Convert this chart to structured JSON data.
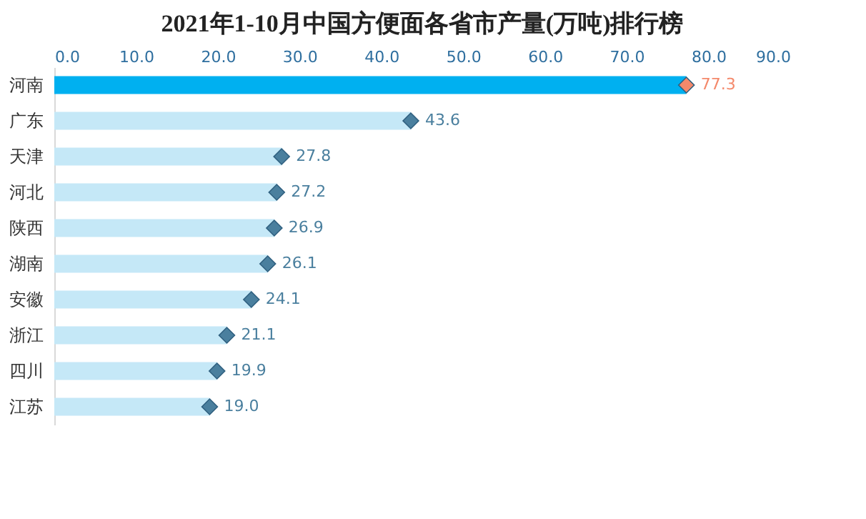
{
  "chart_data": {
    "type": "bar",
    "orientation": "horizontal",
    "title": "2021年1-10月中国方便面各省市产量(万吨)排行榜",
    "categories": [
      "河南",
      "广东",
      "天津",
      "河北",
      "陕西",
      "湖南",
      "安徽",
      "浙江",
      "四川",
      "江苏"
    ],
    "series": [
      {
        "colors": [
          "#00b0f0",
          "#c5e8f7",
          "#c5e8f7",
          "#c5e8f7",
          "#c5e8f7",
          "#c5e8f7",
          "#c5e8f7",
          "#c5e8f7",
          "#c5e8f7",
          "#c5e8f7"
        ],
        "values": [
          77.3,
          43.6,
          27.8,
          27.2,
          26.9,
          26.1,
          24.1,
          21.1,
          19.9,
          19.0
        ]
      },
      {
        "type": "scatter",
        "marker": "diamond",
        "x": [
          "河南",
          "广东",
          "天津",
          "河北",
          "陕西",
          "湖南",
          "安徽",
          "浙江",
          "四川",
          "江苏"
        ],
        "colors": [
          "#f4896b",
          "#4a7f9e",
          "#4a7f9e",
          "#4a7f9e",
          "#4a7f9e",
          "#4a7f9e",
          "#4a7f9e",
          "#4a7f9e",
          "#4a7f9e",
          "#4a7f9e"
        ],
        "values": [
          77.3,
          43.6,
          27.8,
          27.2,
          26.9,
          26.1,
          24.1,
          21.1,
          19.9,
          19.0
        ],
        "value_labels": [
          "77.3",
          "43.6",
          "27.8",
          "27.2",
          "26.9",
          "26.1",
          "24.1",
          "21.1",
          "19.9",
          "19.0"
        ]
      }
    ],
    "xlim": [
      0,
      90
    ],
    "xticks": [
      {
        "value": 0,
        "label": "0.0"
      },
      {
        "value": 10,
        "label": "10.0"
      },
      {
        "value": 20,
        "label": "20.0"
      },
      {
        "value": 30,
        "label": "30.0"
      },
      {
        "value": 40,
        "label": "40.0"
      },
      {
        "value": 50,
        "label": "50.0"
      },
      {
        "value": 60,
        "label": "60.0"
      },
      {
        "value": 70,
        "label": "70.0"
      },
      {
        "value": 80,
        "label": "80.0"
      },
      {
        "value": 90,
        "label": "90.0"
      }
    ],
    "grid": false
  }
}
